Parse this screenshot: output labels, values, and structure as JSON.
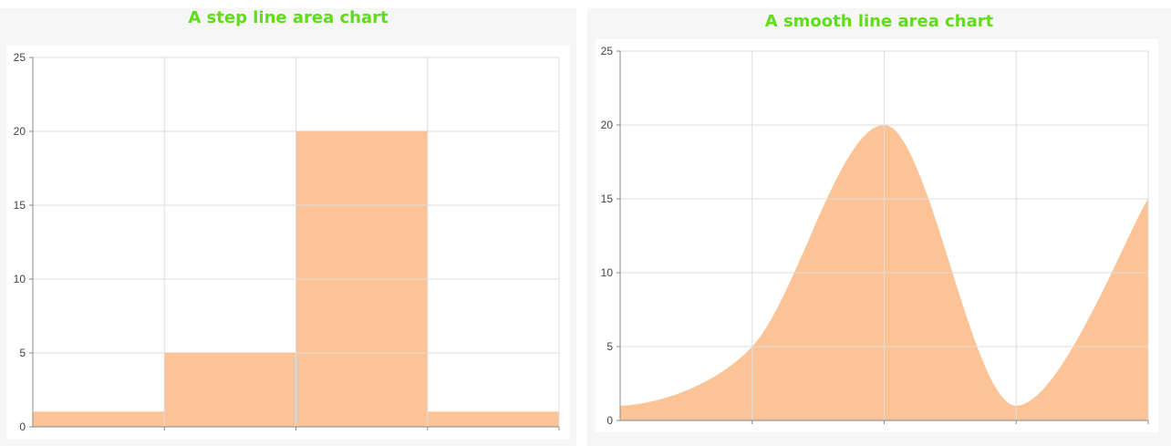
{
  "chart_data": [
    {
      "type": "area",
      "curve": "step",
      "title": "A step line area chart",
      "xlabel": "",
      "ylabel": "",
      "x": [
        0,
        1,
        2,
        3
      ],
      "series": [
        {
          "values": [
            1,
            5,
            20,
            1
          ]
        }
      ],
      "ylim": [
        0,
        25
      ],
      "yticks": [
        "0",
        "5",
        "10",
        "15",
        "20",
        "25"
      ],
      "grid": true,
      "fill_color": "#fcc397"
    },
    {
      "type": "area",
      "curve": "smooth",
      "title": "A smooth line area chart",
      "xlabel": "",
      "ylabel": "",
      "x": [
        0,
        1,
        2,
        3,
        4
      ],
      "series": [
        {
          "values": [
            1,
            5,
            20,
            1,
            15
          ]
        }
      ],
      "ylim": [
        0,
        25
      ],
      "yticks": [
        "0",
        "5",
        "10",
        "15",
        "20",
        "25"
      ],
      "grid": true,
      "fill_color": "#fcc397"
    }
  ]
}
